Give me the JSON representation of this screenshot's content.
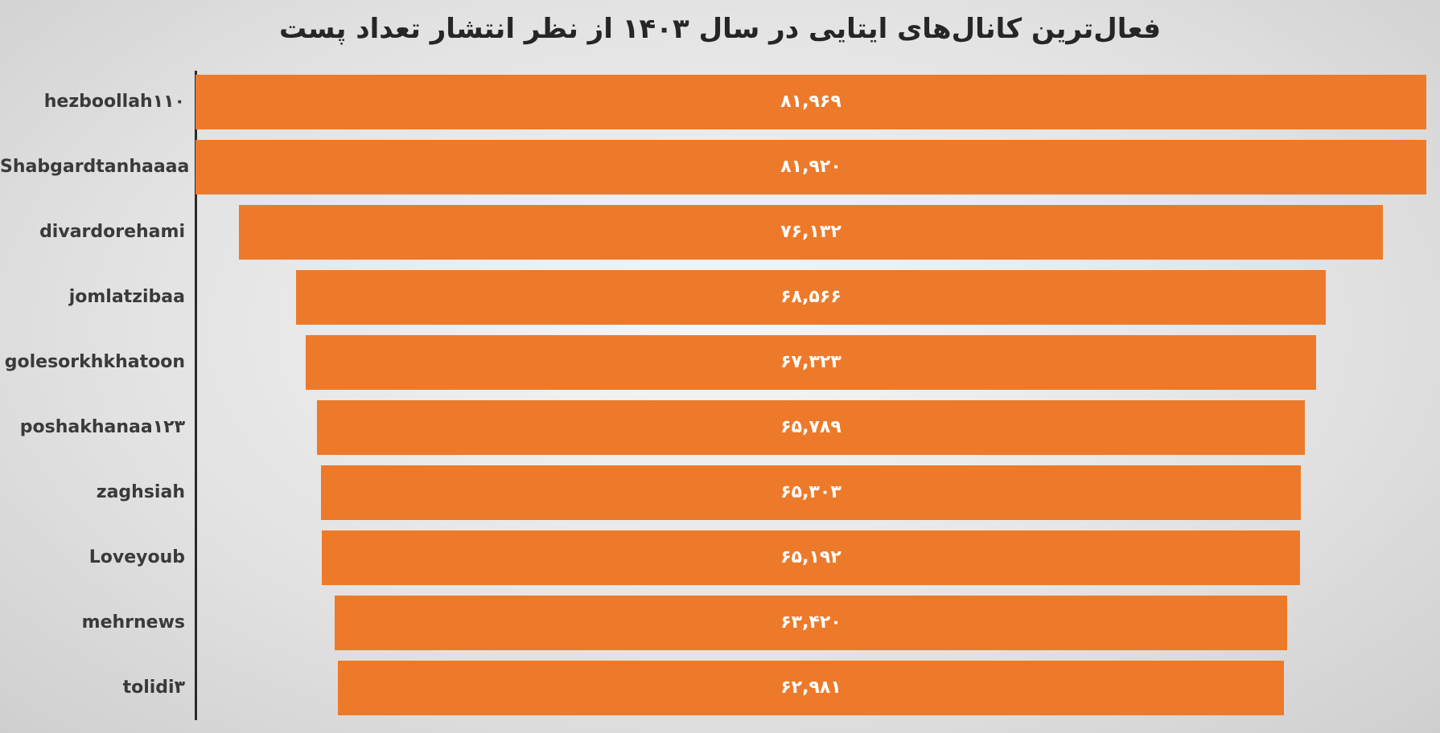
{
  "chart_data": {
    "type": "bar",
    "orientation": "horizontal-funnel",
    "title": "فعال‌ترین کانال‌های ایتایی در سال ۱۴۰۳ از نظر انتشار تعداد پست",
    "categories": [
      "hezboollah۱۱۰",
      "Shabgardtanhaaaa",
      "divardorehami",
      "jomlatzibaa",
      "golesorkhkhatoon",
      "poshakhanaa۱۲۳",
      "zaghsiah",
      "Loveyoub",
      "mehrnews",
      "tolidi۳"
    ],
    "values": [
      81969,
      81920,
      76132,
      68566,
      67323,
      65789,
      65303,
      65192,
      63420,
      62981
    ],
    "value_labels": [
      "۸۱,۹۶۹",
      "۸۱,۹۲۰",
      "۷۶,۱۳۲",
      "۶۸,۵۶۶",
      "۶۷,۳۲۳",
      "۶۵,۷۸۹",
      "۶۵,۳۰۳",
      "۶۵,۱۹۲",
      "۶۳,۴۲۰",
      "۶۲,۹۸۱"
    ],
    "bar_color": "#ed7a2a",
    "xlabel": "",
    "ylabel": "",
    "grid": false,
    "legend": "none"
  }
}
